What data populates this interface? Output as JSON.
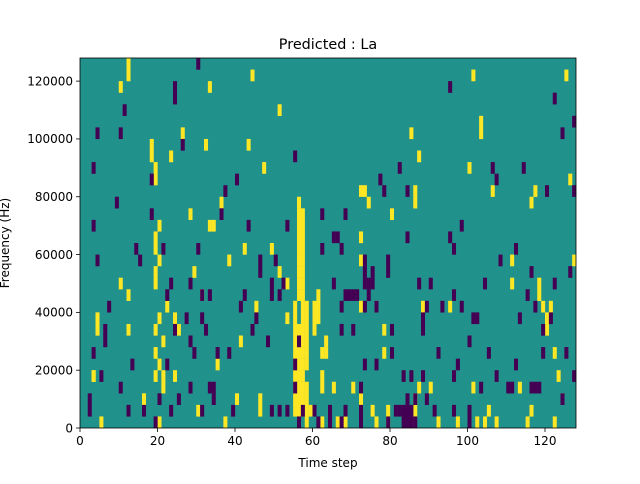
{
  "chart_data": {
    "type": "heatmap",
    "title": "Predicted : La",
    "xlabel": "Time step",
    "ylabel": "Frequency (Hz)",
    "xlim": [
      0,
      128
    ],
    "ylim": [
      0,
      128000
    ],
    "x_ticks": [
      0,
      20,
      40,
      60,
      80,
      100,
      120
    ],
    "x_tick_labels": [
      "0",
      "20",
      "40",
      "60",
      "80",
      "100",
      "120"
    ],
    "y_ticks": [
      0,
      20000,
      40000,
      60000,
      80000,
      100000,
      120000
    ],
    "y_tick_labels": [
      "0",
      "20000",
      "40000",
      "60000",
      "80000",
      "100000",
      "120000"
    ],
    "colormap": "viridis",
    "values_encoding": "-1 = dark purple (low), 0 = teal (background), 1 = yellow (high)",
    "colors": {
      "low": "#440154",
      "mid": "#21918c",
      "high": "#fde725"
    },
    "cell_height_hz": 4000,
    "cells_high": [
      [
        3,
        4,
        5
      ],
      [
        3,
        4,
        7
      ],
      [
        4,
        8
      ],
      [
        4,
        9
      ],
      [
        5,
        0
      ],
      [
        10,
        12
      ],
      [
        10,
        29
      ],
      [
        12,
        8
      ],
      [
        12,
        11
      ],
      [
        12,
        30
      ],
      [
        12,
        31
      ],
      [
        16,
        2
      ],
      [
        18,
        23
      ],
      [
        18,
        24
      ],
      [
        19,
        4
      ],
      [
        19,
        6
      ],
      [
        19,
        8
      ],
      [
        19,
        12
      ],
      [
        19,
        13
      ],
      [
        19,
        15
      ],
      [
        19,
        16
      ],
      [
        19,
        21
      ],
      [
        19,
        22
      ],
      [
        20,
        0
      ],
      [
        20,
        5
      ],
      [
        20,
        9
      ],
      [
        20,
        14
      ],
      [
        20,
        17
      ],
      [
        21,
        3
      ],
      [
        21,
        4
      ],
      [
        21,
        7
      ],
      [
        22,
        10
      ],
      [
        23,
        23
      ],
      [
        24,
        4
      ],
      [
        24,
        9
      ],
      [
        25,
        8
      ],
      [
        26,
        25
      ],
      [
        28,
        18
      ],
      [
        29,
        13
      ],
      [
        30,
        1
      ],
      [
        31,
        11
      ],
      [
        32,
        24
      ],
      [
        33,
        17
      ],
      [
        33,
        29
      ],
      [
        34,
        17
      ],
      [
        35,
        5
      ],
      [
        36,
        19
      ],
      [
        37,
        0
      ],
      [
        38,
        14
      ],
      [
        40,
        2
      ],
      [
        41,
        7
      ],
      [
        42,
        15
      ],
      [
        43,
        24
      ],
      [
        44,
        30
      ],
      [
        45,
        10
      ],
      [
        46,
        1
      ],
      [
        46,
        2
      ],
      [
        47,
        22
      ],
      [
        49,
        15
      ],
      [
        51,
        13
      ],
      [
        51,
        27
      ],
      [
        53,
        9
      ],
      [
        53,
        12
      ],
      [
        55,
        1
      ],
      [
        55,
        2
      ],
      [
        55,
        3
      ],
      [
        55,
        4
      ],
      [
        55,
        5
      ],
      [
        55,
        6
      ],
      [
        55,
        7
      ],
      [
        55,
        8
      ],
      [
        55,
        9
      ],
      [
        55,
        10
      ],
      [
        56,
        1
      ],
      [
        56,
        2
      ],
      [
        56,
        3
      ],
      [
        56,
        4
      ],
      [
        56,
        5
      ],
      [
        56,
        6
      ],
      [
        56,
        7
      ],
      [
        56,
        8
      ],
      [
        56,
        11
      ],
      [
        56,
        12
      ],
      [
        56,
        13
      ],
      [
        56,
        14
      ],
      [
        56,
        15
      ],
      [
        56,
        16
      ],
      [
        56,
        17
      ],
      [
        56,
        18
      ],
      [
        56,
        19
      ],
      [
        57,
        1
      ],
      [
        57,
        2
      ],
      [
        57,
        3
      ],
      [
        57,
        4
      ],
      [
        57,
        5
      ],
      [
        57,
        6
      ],
      [
        57,
        7
      ],
      [
        57,
        8
      ],
      [
        57,
        9
      ],
      [
        57,
        10
      ],
      [
        57,
        11
      ],
      [
        57,
        12
      ],
      [
        57,
        13
      ],
      [
        57,
        14
      ],
      [
        57,
        15
      ],
      [
        57,
        16
      ],
      [
        57,
        17
      ],
      [
        57,
        18
      ],
      [
        58,
        0
      ],
      [
        58,
        1
      ],
      [
        58,
        2
      ],
      [
        58,
        3
      ],
      [
        58,
        5
      ],
      [
        58,
        6
      ],
      [
        58,
        7
      ],
      [
        58,
        8
      ],
      [
        58,
        9
      ],
      [
        58,
        10
      ],
      [
        59,
        1
      ],
      [
        60,
        8
      ],
      [
        60,
        9
      ],
      [
        60,
        10
      ],
      [
        61,
        9
      ],
      [
        61,
        10
      ],
      [
        61,
        11
      ],
      [
        62,
        0
      ],
      [
        62,
        3
      ],
      [
        62,
        4
      ],
      [
        62,
        6
      ],
      [
        63,
        6
      ],
      [
        63,
        7
      ],
      [
        65,
        3
      ],
      [
        66,
        0
      ],
      [
        68,
        0
      ],
      [
        70,
        3
      ],
      [
        72,
        2
      ],
      [
        72,
        10
      ],
      [
        72,
        14
      ],
      [
        72,
        16
      ],
      [
        72,
        20
      ],
      [
        73,
        20
      ],
      [
        74,
        19
      ],
      [
        75,
        1
      ],
      [
        76,
        0
      ],
      [
        76,
        10
      ],
      [
        78,
        6
      ],
      [
        78,
        8
      ],
      [
        79,
        0
      ],
      [
        79,
        1
      ],
      [
        80,
        18
      ],
      [
        85,
        0
      ],
      [
        85,
        25
      ],
      [
        86,
        1
      ],
      [
        86,
        2
      ],
      [
        86,
        19
      ],
      [
        86,
        20
      ],
      [
        87,
        3
      ],
      [
        87,
        23
      ],
      [
        88,
        10
      ],
      [
        90,
        3
      ],
      [
        92,
        0
      ],
      [
        95,
        10
      ],
      [
        97,
        0
      ],
      [
        100,
        0
      ],
      [
        100,
        22
      ],
      [
        101,
        3
      ],
      [
        101,
        30
      ],
      [
        102,
        0
      ],
      [
        103,
        25
      ],
      [
        103,
        26
      ],
      [
        104,
        0
      ],
      [
        105,
        1
      ],
      [
        106,
        20
      ],
      [
        107,
        0
      ],
      [
        111,
        12
      ],
      [
        111,
        14
      ],
      [
        113,
        3
      ],
      [
        115,
        0
      ],
      [
        116,
        1
      ],
      [
        116,
        19
      ],
      [
        117,
        20
      ],
      [
        118,
        11
      ],
      [
        118,
        12
      ],
      [
        119,
        10
      ],
      [
        120,
        8
      ],
      [
        120,
        9
      ],
      [
        121,
        10
      ],
      [
        122,
        0
      ],
      [
        122,
        6
      ],
      [
        123,
        4
      ],
      [
        124,
        2
      ],
      [
        125,
        30
      ],
      [
        126,
        21
      ],
      [
        127,
        14
      ]
    ],
    "cells_low": [
      [
        2,
        1
      ],
      [
        2,
        2
      ],
      [
        3,
        6
      ],
      [
        3,
        17
      ],
      [
        3,
        22
      ],
      [
        4,
        14
      ],
      [
        4,
        25
      ],
      [
        5,
        4
      ],
      [
        6,
        7
      ],
      [
        6,
        8
      ],
      [
        7,
        10
      ],
      [
        9,
        19
      ],
      [
        10,
        3
      ],
      [
        10,
        25
      ],
      [
        11,
        27
      ],
      [
        12,
        1
      ],
      [
        13,
        5
      ],
      [
        14,
        15
      ],
      [
        15,
        14
      ],
      [
        16,
        1
      ],
      [
        18,
        18
      ],
      [
        18,
        21
      ],
      [
        19,
        0
      ],
      [
        20,
        2
      ],
      [
        21,
        15
      ],
      [
        22,
        5
      ],
      [
        22,
        11
      ],
      [
        23,
        1
      ],
      [
        23,
        12
      ],
      [
        24,
        8
      ],
      [
        24,
        28
      ],
      [
        24,
        29
      ],
      [
        25,
        2
      ],
      [
        26,
        24
      ],
      [
        27,
        9
      ],
      [
        28,
        3
      ],
      [
        28,
        7
      ],
      [
        28,
        12
      ],
      [
        29,
        6
      ],
      [
        30,
        15
      ],
      [
        30,
        31
      ],
      [
        31,
        1
      ],
      [
        31,
        9
      ],
      [
        31,
        11
      ],
      [
        32,
        8
      ],
      [
        33,
        3
      ],
      [
        33,
        11
      ],
      [
        34,
        2
      ],
      [
        34,
        3
      ],
      [
        35,
        6
      ],
      [
        36,
        18
      ],
      [
        37,
        20
      ],
      [
        38,
        6
      ],
      [
        39,
        1
      ],
      [
        40,
        21
      ],
      [
        41,
        10
      ],
      [
        42,
        11
      ],
      [
        43,
        17
      ],
      [
        44,
        8
      ],
      [
        45,
        9
      ],
      [
        46,
        13
      ],
      [
        46,
        14
      ],
      [
        48,
        7
      ],
      [
        49,
        1
      ],
      [
        49,
        11
      ],
      [
        49,
        12
      ],
      [
        50,
        14
      ],
      [
        51,
        1
      ],
      [
        51,
        11
      ],
      [
        52,
        12
      ],
      [
        53,
        1
      ],
      [
        53,
        17
      ],
      [
        55,
        3
      ],
      [
        55,
        5
      ],
      [
        55,
        23
      ],
      [
        56,
        0
      ],
      [
        56,
        7
      ],
      [
        57,
        1
      ],
      [
        60,
        1
      ],
      [
        61,
        0
      ],
      [
        62,
        15
      ],
      [
        62,
        18
      ],
      [
        64,
        0
      ],
      [
        64,
        1
      ],
      [
        65,
        12
      ],
      [
        65,
        16
      ],
      [
        66,
        16
      ],
      [
        67,
        0
      ],
      [
        67,
        8
      ],
      [
        67,
        10
      ],
      [
        67,
        15
      ],
      [
        68,
        1
      ],
      [
        68,
        11
      ],
      [
        68,
        18
      ],
      [
        69,
        11
      ],
      [
        70,
        8
      ],
      [
        70,
        11
      ],
      [
        71,
        11
      ],
      [
        72,
        0
      ],
      [
        72,
        1
      ],
      [
        72,
        3
      ],
      [
        73,
        5
      ],
      [
        73,
        10
      ],
      [
        73,
        12
      ],
      [
        73,
        13
      ],
      [
        73,
        14
      ],
      [
        74,
        11
      ],
      [
        74,
        12
      ],
      [
        75,
        12
      ],
      [
        75,
        13
      ],
      [
        76,
        5
      ],
      [
        76,
        10
      ],
      [
        77,
        21
      ],
      [
        78,
        20
      ],
      [
        79,
        0
      ],
      [
        79,
        13
      ],
      [
        79,
        14
      ],
      [
        80,
        6
      ],
      [
        80,
        8
      ],
      [
        81,
        1
      ],
      [
        82,
        1
      ],
      [
        82,
        22
      ],
      [
        83,
        0
      ],
      [
        83,
        1
      ],
      [
        83,
        4
      ],
      [
        84,
        0
      ],
      [
        84,
        1
      ],
      [
        84,
        2
      ],
      [
        84,
        16
      ],
      [
        84,
        20
      ],
      [
        85,
        0
      ],
      [
        85,
        1
      ],
      [
        85,
        4
      ],
      [
        86,
        0
      ],
      [
        86,
        2
      ],
      [
        87,
        12
      ],
      [
        88,
        4
      ],
      [
        88,
        8
      ],
      [
        88,
        9
      ],
      [
        89,
        2
      ],
      [
        89,
        10
      ],
      [
        90,
        12
      ],
      [
        91,
        1
      ],
      [
        92,
        6
      ],
      [
        93,
        10
      ],
      [
        95,
        16
      ],
      [
        95,
        29
      ],
      [
        96,
        1
      ],
      [
        96,
        4
      ],
      [
        96,
        11
      ],
      [
        96,
        15
      ],
      [
        97,
        5
      ],
      [
        98,
        10
      ],
      [
        98,
        17
      ],
      [
        100,
        0
      ],
      [
        100,
        1
      ],
      [
        100,
        7
      ],
      [
        101,
        9
      ],
      [
        102,
        9
      ],
      [
        103,
        3
      ],
      [
        104,
        12
      ],
      [
        105,
        6
      ],
      [
        106,
        22
      ],
      [
        107,
        4
      ],
      [
        107,
        21
      ],
      [
        108,
        14
      ],
      [
        110,
        3
      ],
      [
        111,
        3
      ],
      [
        112,
        5
      ],
      [
        112,
        15
      ],
      [
        113,
        9
      ],
      [
        114,
        22
      ],
      [
        115,
        11
      ],
      [
        116,
        3
      ],
      [
        116,
        13
      ],
      [
        117,
        3
      ],
      [
        117,
        10
      ],
      [
        118,
        3
      ],
      [
        119,
        6
      ],
      [
        119,
        8
      ],
      [
        120,
        20
      ],
      [
        121,
        9
      ],
      [
        122,
        12
      ],
      [
        122,
        28
      ],
      [
        124,
        2
      ],
      [
        124,
        25
      ],
      [
        125,
        6
      ],
      [
        126,
        13
      ],
      [
        127,
        4
      ],
      [
        127,
        20
      ],
      [
        127,
        26
      ]
    ]
  }
}
